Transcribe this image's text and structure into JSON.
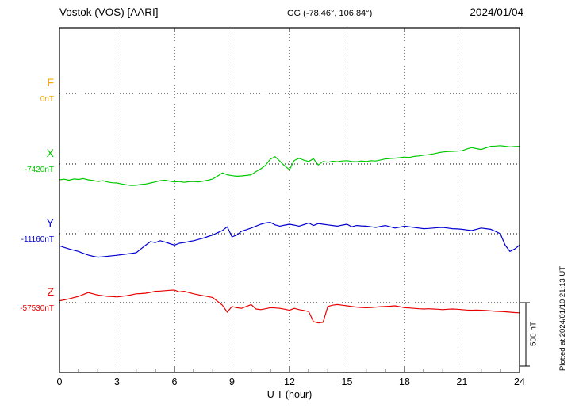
{
  "header": {
    "station_title": "Vostok (VOS)  [AARI]",
    "gg_coords": "GG (-78.46°, 106.84°)",
    "date": "2024/01/04"
  },
  "axis": {
    "x_label": "U T (hour)",
    "x_ticks": [
      0,
      3,
      6,
      9,
      12,
      15,
      18,
      21,
      24
    ],
    "x_range": [
      0,
      24
    ]
  },
  "scale_bar": {
    "label": "500 nT",
    "nT": 500
  },
  "footer_note": "Plotted at 2024/01/10 21:13 UT",
  "chart_data": {
    "type": "line",
    "title": "Vostok (VOS) [AARI] magnetogram 2024/01/04",
    "xlabel": "U T (hour)",
    "x_start": 0,
    "x_step": 0.25,
    "x_range": [
      0,
      24
    ],
    "scale_nT_per_div": 500,
    "series": [
      {
        "name": "F",
        "color": "#FFA500",
        "baseline_label": "0nT",
        "baseline_nT": 0,
        "values": []
      },
      {
        "name": "X",
        "color": "#00C800",
        "baseline_label": "-7420nT",
        "baseline_nT": -7420,
        "values": [
          -125,
          -120,
          -128,
          -118,
          -122,
          -115,
          -125,
          -130,
          -138,
          -132,
          -142,
          -148,
          -150,
          -158,
          -165,
          -170,
          -168,
          -162,
          -158,
          -150,
          -142,
          -132,
          -128,
          -135,
          -142,
          -138,
          -145,
          -140,
          -138,
          -142,
          -135,
          -128,
          -118,
          -95,
          -70,
          -85,
          -92,
          -96,
          -94,
          -90,
          -85,
          -60,
          -38,
          -10,
          38,
          58,
          22,
          -15,
          -45,
          28,
          45,
          30,
          20,
          42,
          -8,
          20,
          14,
          22,
          18,
          24,
          26,
          20,
          18,
          24,
          20,
          26,
          24,
          32,
          40,
          44,
          46,
          50,
          55,
          52,
          60,
          64,
          70,
          74,
          80,
          88,
          95,
          98,
          100,
          102,
          105,
          118,
          130,
          122,
          115,
          128,
          140,
          142,
          145,
          140,
          135,
          138,
          140
        ]
      },
      {
        "name": "Y",
        "color": "#0000D0",
        "baseline_label": "-11160nT",
        "baseline_nT": -11160,
        "values": [
          -95,
          -108,
          -120,
          -130,
          -140,
          -155,
          -168,
          -178,
          -185,
          -182,
          -178,
          -174,
          -170,
          -165,
          -160,
          -155,
          -150,
          -120,
          -90,
          -62,
          -70,
          -55,
          -65,
          -78,
          -90,
          -75,
          -70,
          -62,
          -55,
          -45,
          -35,
          -22,
          -10,
          8,
          25,
          55,
          -25,
          -10,
          20,
          32,
          45,
          60,
          75,
          85,
          90,
          70,
          60,
          68,
          75,
          68,
          60,
          72,
          85,
          65,
          80,
          75,
          70,
          65,
          60,
          68,
          75,
          55,
          65,
          62,
          60,
          55,
          50,
          58,
          65,
          55,
          45,
          52,
          60,
          55,
          50,
          45,
          40,
          42,
          45,
          48,
          50,
          45,
          40,
          38,
          35,
          30,
          25,
          35,
          45,
          40,
          35,
          18,
          0,
          -90,
          -140,
          -120,
          -90
        ]
      },
      {
        "name": "Z",
        "color": "#E80000",
        "baseline_label": "-57530nT",
        "baseline_nT": -57530,
        "values": [
          15,
          22,
          30,
          40,
          50,
          65,
          80,
          70,
          60,
          55,
          50,
          48,
          45,
          50,
          55,
          62,
          70,
          72,
          75,
          82,
          90,
          92,
          95,
          98,
          100,
          85,
          90,
          80,
          70,
          62,
          55,
          48,
          40,
          10,
          -20,
          -75,
          -30,
          -40,
          -45,
          -30,
          -15,
          -50,
          -55,
          -48,
          -40,
          -42,
          -45,
          -52,
          -60,
          -45,
          -55,
          -62,
          -70,
          -150,
          -160,
          -155,
          -30,
          -20,
          -15,
          -20,
          -25,
          -30,
          -35,
          -38,
          -40,
          -38,
          -35,
          -32,
          -30,
          -28,
          -25,
          -32,
          -40,
          -42,
          -45,
          -48,
          -50,
          -48,
          -50,
          -52,
          -55,
          -52,
          -50,
          -52,
          -55,
          -58,
          -60,
          -58,
          -60,
          -62,
          -65,
          -68,
          -70,
          -72,
          -75,
          -78,
          -80
        ]
      }
    ]
  },
  "layout_colors": {
    "background": "#FFFFFF",
    "frame": "#000000"
  }
}
